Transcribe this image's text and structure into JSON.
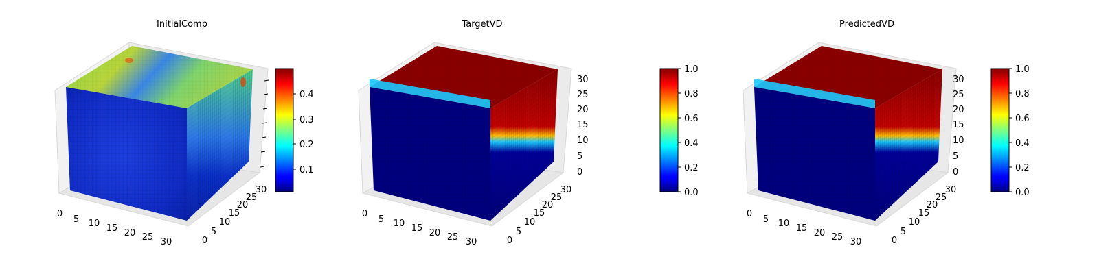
{
  "chart_data": [
    {
      "type": "3d-voxel-cube",
      "title": "InitialComp",
      "axes": {
        "x": {
          "range": [
            0,
            32
          ],
          "ticks": [
            0,
            5,
            10,
            15,
            20,
            25,
            30
          ]
        },
        "y": {
          "range": [
            0,
            32
          ],
          "ticks": [
            0,
            5,
            10,
            15,
            20,
            25,
            30
          ]
        },
        "z": {
          "range": [
            0,
            32
          ],
          "ticks": [],
          "tick_labels_visible": false
        }
      },
      "colormap": "jet",
      "color_range": [
        0.02,
        0.49
      ],
      "colorbar": {
        "ticks": [
          0.1,
          0.2,
          0.3,
          0.4
        ],
        "tick_labels": [
          "0.1",
          "0.2",
          "0.3",
          "0.4"
        ]
      },
      "field_description": "mostly low values (~0.05) with a yellow-green band of ~0.3 across the top surface and right side"
    },
    {
      "type": "3d-voxel-cube",
      "title": "TargetVD",
      "axes": {
        "x": {
          "range": [
            0,
            32
          ],
          "ticks": [
            0,
            5,
            10,
            15,
            20,
            25,
            30
          ]
        },
        "y": {
          "range": [
            0,
            32
          ],
          "ticks": [
            0,
            5,
            10,
            15,
            20,
            25,
            30
          ]
        },
        "z": {
          "range": [
            0,
            32
          ],
          "ticks": [
            0,
            5,
            10,
            15,
            20,
            25,
            30
          ]
        }
      },
      "colormap": "jet",
      "color_range": [
        0.0,
        1.0
      ],
      "colorbar": {
        "ticks": [
          0.0,
          0.2,
          0.4,
          0.6,
          0.8,
          1.0
        ],
        "tick_labels": [
          "0.0",
          "0.2",
          "0.4",
          "0.6",
          "0.8",
          "1.0"
        ]
      },
      "field_description": "binary field: value 1.0 (dark red) in the top slab and upper-right corner region, 0.0 (dark blue) elsewhere"
    },
    {
      "type": "3d-voxel-cube",
      "title": "PredictedVD",
      "axes": {
        "x": {
          "range": [
            0,
            32
          ],
          "ticks": [
            0,
            5,
            10,
            15,
            20,
            25,
            30
          ]
        },
        "y": {
          "range": [
            0,
            32
          ],
          "ticks": [
            0,
            5,
            10,
            15,
            20,
            25,
            30
          ]
        },
        "z": {
          "range": [
            0,
            32
          ],
          "ticks": [
            0,
            5,
            10,
            15,
            20,
            25,
            30
          ]
        }
      },
      "colormap": "jet",
      "color_range": [
        0.0,
        1.0
      ],
      "colorbar": {
        "ticks": [
          0.0,
          0.2,
          0.4,
          0.6,
          0.8,
          1.0
        ],
        "tick_labels": [
          "0.0",
          "0.2",
          "0.4",
          "0.6",
          "0.8",
          "1.0"
        ]
      },
      "field_description": "binary field: value 1.0 (dark red) in the top slab and upper-right corner region, 0.0 (dark blue) elsewhere"
    }
  ],
  "colors": {
    "jet_dark_blue": "#00007f",
    "jet_blue": "#0000ff",
    "jet_cyan": "#00ffff",
    "jet_yellow": "#ffff00",
    "jet_red": "#ff0000",
    "jet_dark_red": "#7f0000",
    "pane_fill": "#f2f2f2",
    "grid": "#d0d0d0"
  }
}
